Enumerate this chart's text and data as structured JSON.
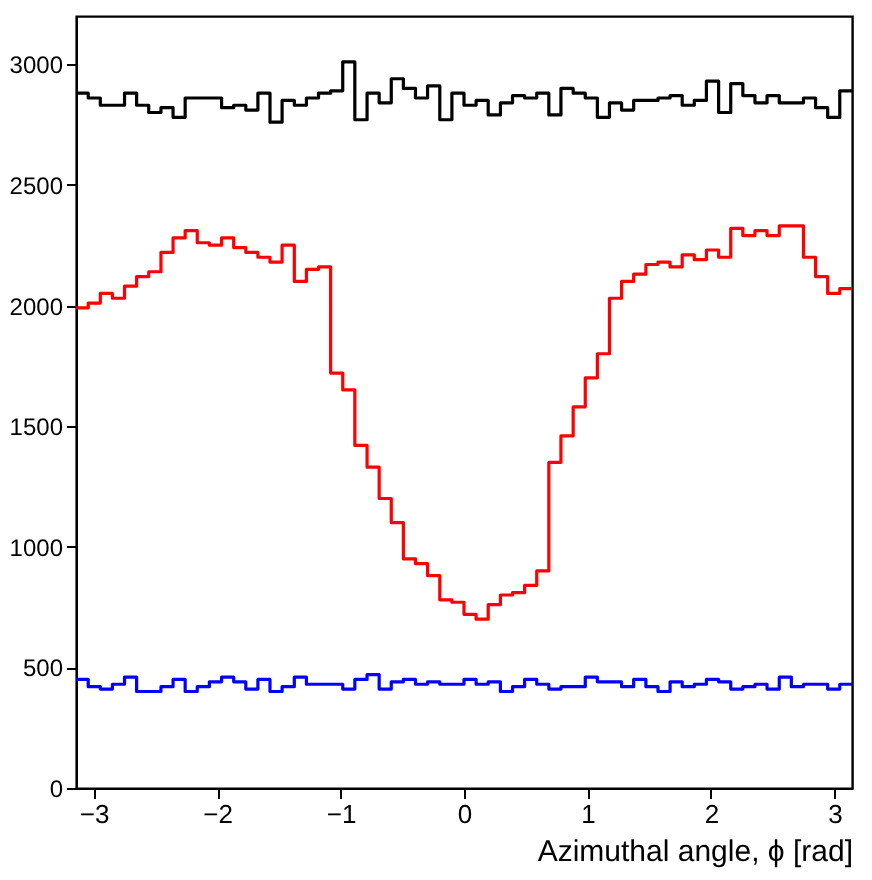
{
  "chart_data": {
    "type": "histogram",
    "xlabel": "Azimuthal angle, ϕ [rad]",
    "bins": [
      -3.142,
      -3.043,
      -2.945,
      -2.847,
      -2.749,
      -2.651,
      -2.553,
      -2.454,
      -2.356,
      -2.258,
      -2.16,
      -2.062,
      -1.963,
      -1.865,
      -1.767,
      -1.669,
      -1.571,
      -1.473,
      -1.374,
      -1.276,
      -1.178,
      -1.08,
      -0.982,
      -0.884,
      -0.785,
      -0.687,
      -0.589,
      -0.491,
      -0.393,
      -0.295,
      -0.196,
      -0.098,
      0,
      0.098,
      0.196,
      0.295,
      0.393,
      0.491,
      0.589,
      0.687,
      0.785,
      0.884,
      0.982,
      1.08,
      1.178,
      1.276,
      1.374,
      1.473,
      1.571,
      1.669,
      1.767,
      1.865,
      1.963,
      2.062,
      2.16,
      2.258,
      2.356,
      2.454,
      2.553,
      2.651,
      2.749,
      2.847,
      2.945,
      3.043,
      3.142
    ],
    "series": [
      {
        "color": "#000000",
        "values": [
          2880,
          2860,
          2830,
          2830,
          2880,
          2830,
          2800,
          2820,
          2780,
          2860,
          2860,
          2860,
          2820,
          2830,
          2810,
          2880,
          2760,
          2850,
          2830,
          2860,
          2880,
          2890,
          3010,
          2770,
          2880,
          2840,
          2940,
          2900,
          2860,
          2910,
          2770,
          2880,
          2830,
          2850,
          2790,
          2840,
          2870,
          2860,
          2880,
          2790,
          2900,
          2880,
          2860,
          2780,
          2840,
          2810,
          2850,
          2850,
          2860,
          2870,
          2830,
          2850,
          2930,
          2800,
          2920,
          2870,
          2840,
          2870,
          2840,
          2840,
          2860,
          2820,
          2780,
          2890
        ]
      },
      {
        "color": "#ff0000",
        "values": [
          1990,
          2010,
          2050,
          2030,
          2080,
          2120,
          2140,
          2220,
          2280,
          2310,
          2260,
          2250,
          2280,
          2240,
          2220,
          2200,
          2180,
          2250,
          2100,
          2150,
          2160,
          1720,
          1650,
          1420,
          1330,
          1200,
          1100,
          950,
          930,
          880,
          780,
          770,
          720,
          700,
          760,
          800,
          810,
          840,
          900,
          1350,
          1460,
          1580,
          1700,
          1800,
          2030,
          2100,
          2130,
          2170,
          2180,
          2160,
          2210,
          2190,
          2230,
          2200,
          2320,
          2290,
          2310,
          2290,
          2330,
          2330,
          2200,
          2120,
          2050,
          2070
        ]
      },
      {
        "color": "#0000ff",
        "values": [
          450,
          420,
          410,
          430,
          460,
          400,
          400,
          420,
          450,
          400,
          420,
          440,
          460,
          440,
          410,
          450,
          400,
          420,
          460,
          430,
          430,
          430,
          410,
          450,
          470,
          410,
          440,
          450,
          430,
          440,
          430,
          430,
          450,
          430,
          440,
          400,
          420,
          450,
          430,
          410,
          420,
          420,
          460,
          440,
          440,
          420,
          450,
          420,
          400,
          440,
          420,
          430,
          450,
          440,
          410,
          420,
          430,
          410,
          460,
          420,
          430,
          430,
          410,
          430
        ]
      }
    ],
    "xlim": [
      -3.142,
      3.142
    ],
    "xticks": [
      -3,
      -2,
      -1,
      0,
      1,
      2,
      3
    ],
    "ylim": [
      0,
      3200
    ],
    "yticks": [
      0,
      500,
      1000,
      1500,
      2000,
      2500,
      3000
    ],
    "grid": false
  }
}
